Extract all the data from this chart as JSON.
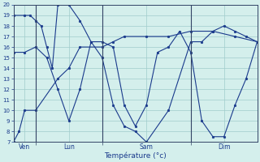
{
  "xlabel": "Température (°c)",
  "background_color": "#d4efec",
  "line_color": "#1a3a8c",
  "grid_color": "#a0cccc",
  "ylim": [
    7,
    20
  ],
  "yticks": [
    7,
    8,
    9,
    10,
    11,
    12,
    13,
    14,
    15,
    16,
    17,
    18,
    19,
    20
  ],
  "day_labels": [
    "Ven",
    "Lun",
    "Sam",
    "Dim"
  ],
  "vline_x": [
    24,
    96,
    192
  ],
  "xlim": [
    0,
    264
  ],
  "lines": [
    {
      "x": [
        0,
        6,
        12,
        24,
        48,
        60,
        72,
        96,
        108,
        120,
        144,
        168,
        192,
        216,
        240,
        264
      ],
      "y": [
        7,
        8,
        10,
        10,
        13,
        14,
        16,
        16,
        16.5,
        17,
        17,
        17,
        17.5,
        17.5,
        17,
        16.5
      ]
    },
    {
      "x": [
        0,
        12,
        24,
        36,
        48,
        60,
        72,
        84,
        96,
        108,
        120,
        132,
        144,
        156,
        168,
        180,
        192,
        204,
        216,
        228,
        240,
        252,
        264
      ],
      "y": [
        15.5,
        15.5,
        16,
        15,
        12,
        9,
        12,
        16.5,
        16.5,
        16,
        10.5,
        8.5,
        10.5,
        15.5,
        16,
        17.5,
        15.5,
        9,
        7.5,
        7.5,
        10.5,
        13,
        16.5
      ]
    },
    {
      "x": [
        0,
        12,
        18,
        24,
        30,
        36,
        42,
        48,
        60,
        72,
        84,
        96,
        108,
        120,
        132,
        144,
        168,
        192,
        204,
        216,
        228,
        240,
        252,
        264
      ],
      "y": [
        19,
        19,
        19,
        18.5,
        18,
        16,
        14,
        20,
        20,
        18.5,
        16.5,
        15,
        10.5,
        8.5,
        8,
        7,
        10,
        16.5,
        16.5,
        17.5,
        18,
        17.5,
        17,
        16.5
      ]
    }
  ],
  "figsize": [
    3.2,
    2.0
  ],
  "dpi": 100
}
